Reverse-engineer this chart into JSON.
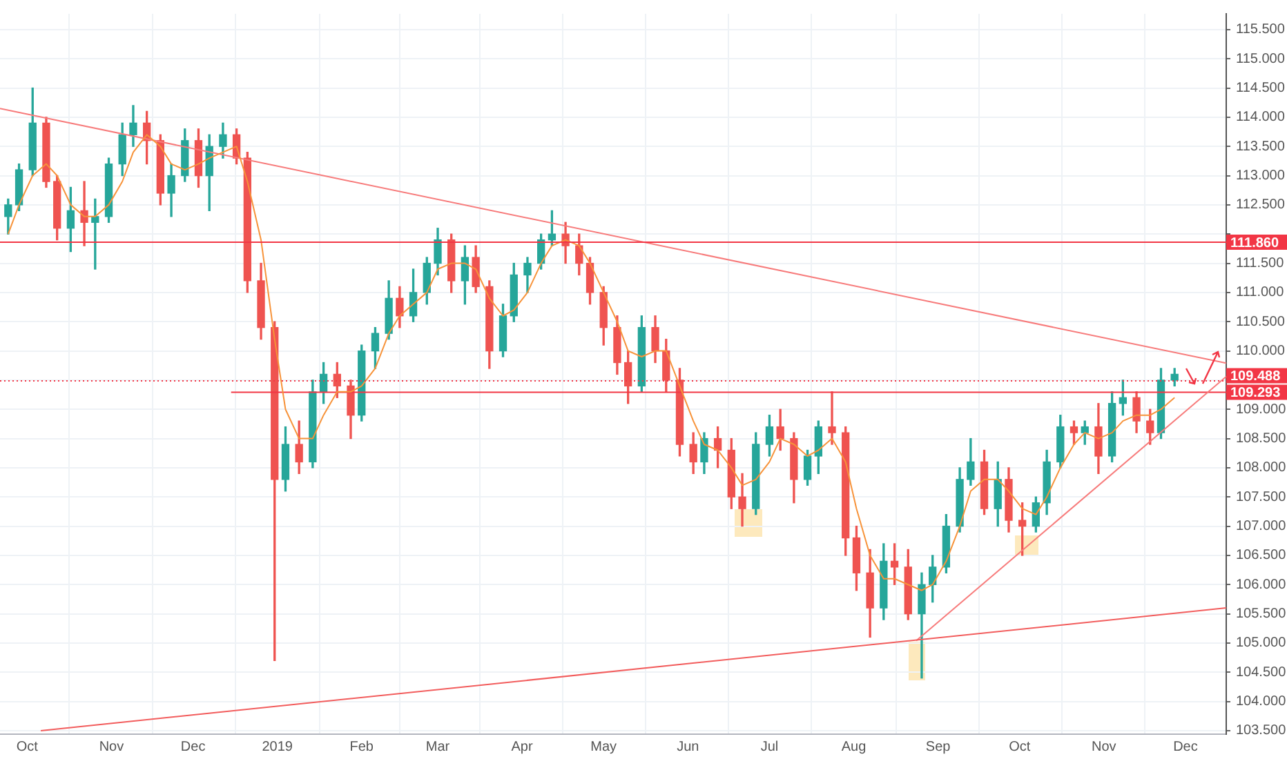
{
  "chart_data": {
    "type": "candlestick",
    "x": [
      "2018-09-24",
      "2018-09-28",
      "2018-10-03",
      "2018-10-08",
      "2018-10-12",
      "2018-10-17",
      "2018-10-22",
      "2018-10-26",
      "2018-10-31",
      "2018-11-05",
      "2018-11-09",
      "2018-11-14",
      "2018-11-19",
      "2018-11-23",
      "2018-11-28",
      "2018-12-03",
      "2018-12-07",
      "2018-12-12",
      "2018-12-17",
      "2018-12-21",
      "2018-12-26",
      "2018-12-31",
      "2019-01-04",
      "2019-01-09",
      "2019-01-14",
      "2019-01-18",
      "2019-01-23",
      "2019-01-28",
      "2019-02-01",
      "2019-02-06",
      "2019-02-11",
      "2019-02-15",
      "2019-02-20",
      "2019-02-25",
      "2019-03-01",
      "2019-03-06",
      "2019-03-11",
      "2019-03-15",
      "2019-03-20",
      "2019-03-25",
      "2019-03-29",
      "2019-04-03",
      "2019-04-08",
      "2019-04-12",
      "2019-04-17",
      "2019-04-22",
      "2019-04-26",
      "2019-05-01",
      "2019-05-06",
      "2019-05-10",
      "2019-05-15",
      "2019-05-20",
      "2019-05-24",
      "2019-05-29",
      "2019-06-03",
      "2019-06-07",
      "2019-06-12",
      "2019-06-17",
      "2019-06-21",
      "2019-06-26",
      "2019-07-01",
      "2019-07-05",
      "2019-07-10",
      "2019-07-15",
      "2019-07-19",
      "2019-07-24",
      "2019-07-29",
      "2019-08-02",
      "2019-08-07",
      "2019-08-12",
      "2019-08-16",
      "2019-08-21",
      "2019-08-26",
      "2019-08-30",
      "2019-09-04",
      "2019-09-09",
      "2019-09-13",
      "2019-09-18",
      "2019-09-23",
      "2019-09-27",
      "2019-10-02",
      "2019-10-07",
      "2019-10-11",
      "2019-10-16",
      "2019-10-21",
      "2019-10-25",
      "2019-10-30",
      "2019-11-04",
      "2019-11-08",
      "2019-11-13",
      "2019-11-18",
      "2019-11-22",
      "2019-11-27"
    ],
    "ohlc": [
      [
        112.3,
        112.6,
        112.0,
        112.5
      ],
      [
        112.5,
        113.2,
        112.4,
        113.1
      ],
      [
        113.1,
        114.5,
        113.0,
        113.9
      ],
      [
        113.9,
        114.0,
        112.8,
        112.9
      ],
      [
        112.9,
        113.0,
        111.9,
        112.1
      ],
      [
        112.1,
        112.8,
        111.7,
        112.4
      ],
      [
        112.4,
        112.9,
        111.8,
        112.2
      ],
      [
        112.2,
        112.6,
        111.4,
        112.3
      ],
      [
        112.3,
        113.3,
        112.2,
        113.2
      ],
      [
        113.2,
        113.9,
        113.0,
        113.7
      ],
      [
        113.7,
        114.2,
        113.5,
        113.9
      ],
      [
        113.9,
        114.1,
        113.2,
        113.6
      ],
      [
        113.6,
        113.7,
        112.5,
        112.7
      ],
      [
        112.7,
        113.2,
        112.3,
        113.0
      ],
      [
        113.0,
        113.8,
        112.9,
        113.6
      ],
      [
        113.6,
        113.8,
        112.8,
        113.0
      ],
      [
        113.0,
        113.7,
        112.4,
        113.5
      ],
      [
        113.5,
        113.9,
        113.3,
        113.7
      ],
      [
        113.7,
        113.8,
        113.2,
        113.3
      ],
      [
        113.3,
        113.4,
        111.0,
        111.2
      ],
      [
        111.2,
        111.5,
        110.2,
        110.4
      ],
      [
        110.4,
        110.5,
        104.7,
        107.8
      ],
      [
        107.8,
        108.7,
        107.6,
        108.4
      ],
      [
        108.4,
        108.8,
        107.9,
        108.1
      ],
      [
        108.1,
        109.5,
        108.0,
        109.3
      ],
      [
        109.3,
        109.8,
        109.1,
        109.6
      ],
      [
        109.6,
        109.8,
        109.2,
        109.4
      ],
      [
        109.4,
        109.5,
        108.5,
        108.9
      ],
      [
        108.9,
        110.1,
        108.8,
        110.0
      ],
      [
        110.0,
        110.4,
        109.7,
        110.3
      ],
      [
        110.3,
        111.2,
        110.2,
        110.9
      ],
      [
        110.9,
        111.1,
        110.4,
        110.6
      ],
      [
        110.6,
        111.4,
        110.5,
        111.0
      ],
      [
        111.0,
        111.6,
        110.8,
        111.5
      ],
      [
        111.5,
        112.1,
        111.3,
        111.9
      ],
      [
        111.9,
        112.0,
        111.0,
        111.2
      ],
      [
        111.2,
        111.8,
        110.8,
        111.6
      ],
      [
        111.6,
        111.8,
        111.0,
        111.1
      ],
      [
        111.1,
        111.2,
        109.7,
        110.0
      ],
      [
        110.0,
        110.8,
        109.9,
        110.6
      ],
      [
        110.6,
        111.5,
        110.5,
        111.3
      ],
      [
        111.3,
        111.6,
        111.0,
        111.5
      ],
      [
        111.5,
        112.0,
        111.4,
        111.9
      ],
      [
        111.9,
        112.4,
        111.8,
        112.0
      ],
      [
        112.0,
        112.2,
        111.5,
        111.8
      ],
      [
        111.8,
        112.0,
        111.3,
        111.5
      ],
      [
        111.5,
        111.6,
        110.8,
        111.0
      ],
      [
        111.0,
        111.1,
        110.1,
        110.4
      ],
      [
        110.4,
        110.6,
        109.6,
        109.8
      ],
      [
        109.8,
        110.0,
        109.1,
        109.4
      ],
      [
        109.4,
        110.6,
        109.3,
        110.4
      ],
      [
        110.4,
        110.6,
        109.8,
        110.0
      ],
      [
        110.0,
        110.2,
        109.3,
        109.5
      ],
      [
        109.5,
        109.7,
        108.2,
        108.4
      ],
      [
        108.4,
        108.6,
        107.9,
        108.1
      ],
      [
        108.1,
        108.6,
        107.9,
        108.5
      ],
      [
        108.5,
        108.7,
        108.0,
        108.3
      ],
      [
        108.3,
        108.5,
        107.3,
        107.5
      ],
      [
        107.5,
        107.9,
        107.0,
        107.3
      ],
      [
        107.3,
        108.6,
        107.2,
        108.4
      ],
      [
        108.4,
        108.9,
        108.2,
        108.7
      ],
      [
        108.7,
        109.0,
        108.3,
        108.5
      ],
      [
        108.5,
        108.6,
        107.4,
        107.8
      ],
      [
        107.8,
        108.3,
        107.7,
        108.2
      ],
      [
        108.2,
        108.8,
        107.9,
        108.7
      ],
      [
        108.7,
        109.3,
        108.4,
        108.6
      ],
      [
        108.6,
        108.7,
        106.5,
        106.8
      ],
      [
        106.8,
        107.0,
        105.9,
        106.2
      ],
      [
        106.2,
        106.6,
        105.1,
        105.6
      ],
      [
        105.6,
        106.7,
        105.4,
        106.4
      ],
      [
        106.4,
        106.7,
        106.0,
        106.3
      ],
      [
        106.3,
        106.6,
        105.4,
        105.5
      ],
      [
        105.5,
        106.2,
        104.4,
        106.0
      ],
      [
        106.0,
        106.5,
        105.7,
        106.3
      ],
      [
        106.3,
        107.2,
        106.2,
        107.0
      ],
      [
        107.0,
        108.0,
        106.9,
        107.8
      ],
      [
        107.8,
        108.5,
        107.7,
        108.1
      ],
      [
        108.1,
        108.3,
        107.2,
        107.3
      ],
      [
        107.3,
        108.1,
        107.0,
        107.8
      ],
      [
        107.8,
        108.0,
        106.9,
        107.1
      ],
      [
        107.1,
        107.4,
        106.5,
        107.0
      ],
      [
        107.0,
        107.5,
        106.9,
        107.4
      ],
      [
        107.4,
        108.3,
        107.2,
        108.1
      ],
      [
        108.1,
        108.9,
        108.0,
        108.7
      ],
      [
        108.7,
        108.8,
        108.4,
        108.6
      ],
      [
        108.6,
        108.8,
        108.4,
        108.7
      ],
      [
        108.7,
        109.1,
        107.9,
        108.2
      ],
      [
        108.2,
        109.3,
        108.1,
        109.1
      ],
      [
        109.1,
        109.5,
        108.9,
        109.2
      ],
      [
        109.2,
        109.3,
        108.6,
        108.8
      ],
      [
        108.8,
        109.0,
        108.4,
        108.6
      ],
      [
        108.6,
        109.7,
        108.5,
        109.5
      ],
      [
        109.5,
        109.7,
        109.4,
        109.6
      ]
    ],
    "colors": [
      "#26a69a",
      "#26a69a",
      "#26a69a",
      "#ef5350",
      "#ef5350",
      "#26a69a",
      "#ef5350",
      "#26a69a",
      "#26a69a",
      "#26a69a",
      "#26a69a",
      "#ef5350",
      "#ef5350",
      "#26a69a",
      "#26a69a",
      "#ef5350",
      "#26a69a",
      "#26a69a",
      "#ef5350",
      "#ef5350",
      "#ef5350",
      "#ef5350",
      "#26a69a",
      "#ef5350",
      "#26a69a",
      "#26a69a",
      "#ef5350",
      "#ef5350",
      "#26a69a",
      "#26a69a",
      "#26a69a",
      "#ef5350",
      "#26a69a",
      "#26a69a",
      "#26a69a",
      "#ef5350",
      "#26a69a",
      "#ef5350",
      "#ef5350",
      "#26a69a",
      "#26a69a",
      "#26a69a",
      "#26a69a",
      "#26a69a",
      "#ef5350",
      "#ef5350",
      "#ef5350",
      "#ef5350",
      "#ef5350",
      "#ef5350",
      "#26a69a",
      "#ef5350",
      "#ef5350",
      "#ef5350",
      "#ef5350",
      "#26a69a",
      "#ef5350",
      "#ef5350",
      "#ef5350",
      "#26a69a",
      "#26a69a",
      "#ef5350",
      "#ef5350",
      "#26a69a",
      "#26a69a",
      "#ef5350",
      "#ef5350",
      "#ef5350",
      "#ef5350",
      "#26a69a",
      "#ef5350",
      "#ef5350",
      "#26a69a",
      "#26a69a",
      "#26a69a",
      "#26a69a",
      "#26a69a",
      "#ef5350",
      "#26a69a",
      "#ef5350",
      "#ef5350",
      "#26a69a",
      "#26a69a",
      "#26a69a",
      "#ef5350",
      "#26a69a",
      "#ef5350",
      "#26a69a",
      "#26a69a",
      "#ef5350",
      "#ef5350",
      "#26a69a",
      "#26a69a"
    ],
    "series": [
      {
        "type": "line",
        "color": "#f7933a",
        "values": [
          112.0,
          112.5,
          113.0,
          113.2,
          113.0,
          112.5,
          112.3,
          112.3,
          112.5,
          112.9,
          113.4,
          113.7,
          113.5,
          113.2,
          113.1,
          113.2,
          113.3,
          113.4,
          113.5,
          112.9,
          111.9,
          110.2,
          109.0,
          108.5,
          108.5,
          108.9,
          109.3,
          109.3,
          109.4,
          109.7,
          110.3,
          110.6,
          110.8,
          111.0,
          111.4,
          111.5,
          111.5,
          111.4,
          110.9,
          110.6,
          110.7,
          111.0,
          111.5,
          111.8,
          111.9,
          111.8,
          111.5,
          111.0,
          110.5,
          110.0,
          109.9,
          110.0,
          110.0,
          109.4,
          108.8,
          108.4,
          108.3,
          108.0,
          107.7,
          107.8,
          108.1,
          108.5,
          108.4,
          108.2,
          108.3,
          108.5,
          108.1,
          107.3,
          106.5,
          106.1,
          106.1,
          106.0,
          105.9,
          106.0,
          106.4,
          107.0,
          107.6,
          107.8,
          107.8,
          107.6,
          107.3,
          107.2,
          107.5,
          108.0,
          108.4,
          108.6,
          108.5,
          108.6,
          108.8,
          108.9,
          108.9,
          109.0,
          109.2
        ]
      },
      {
        "type": "line",
        "color": "#f77b7b",
        "x": [
          "2018-09-21",
          "2019-12-16"
        ],
        "values": [
          114.15,
          109.79
        ]
      },
      {
        "type": "line",
        "color": "#f25c5c",
        "x": [
          "2018-10-06",
          "2019-12-16"
        ],
        "values": [
          103.5,
          105.6
        ]
      },
      {
        "type": "line",
        "color": "#f77b7b",
        "x": [
          "2019-08-24",
          "2019-12-16"
        ],
        "values": [
          105.04,
          109.56
        ]
      },
      {
        "type": "line",
        "color": "#f23645",
        "x": [
          "2018-12-15",
          "2019-12-16"
        ],
        "values": [
          109.293,
          109.293
        ]
      }
    ],
    "ref_lines": [
      {
        "axis": "y",
        "value": 111.86,
        "label": "111.860",
        "color": "#f23645",
        "line_style": "solid"
      },
      {
        "axis": "y",
        "value": 109.488,
        "label": "109.488",
        "color": "#f23645",
        "line_style": "dotted"
      }
    ],
    "annotations": [
      {
        "text": "109.293",
        "x": "2019-12-16",
        "y": 109.293
      }
    ],
    "xlim": [
      "2018-09-21",
      "2019-12-16"
    ],
    "xticks": [
      {
        "value": "2018-10-01",
        "label": "Oct"
      },
      {
        "value": "2018-11-01",
        "label": "Nov"
      },
      {
        "value": "2018-12-01",
        "label": "Dec"
      },
      {
        "value": "2019-01-01",
        "label": "2019"
      },
      {
        "value": "2019-02-01",
        "label": "Feb"
      },
      {
        "value": "2019-03-01",
        "label": "Mar"
      },
      {
        "value": "2019-04-01",
        "label": "Apr"
      },
      {
        "value": "2019-05-01",
        "label": "May"
      },
      {
        "value": "2019-06-01",
        "label": "Jun"
      },
      {
        "value": "2019-07-01",
        "label": "Jul"
      },
      {
        "value": "2019-08-01",
        "label": "Aug"
      },
      {
        "value": "2019-09-01",
        "label": "Sep"
      },
      {
        "value": "2019-10-01",
        "label": "Oct"
      },
      {
        "value": "2019-11-01",
        "label": "Nov"
      },
      {
        "value": "2019-12-01",
        "label": "Dec"
      }
    ],
    "ylim": [
      103.44,
      115.77
    ],
    "yticks": [
      {
        "value": 103.5,
        "label": "103.500"
      },
      {
        "value": 104,
        "label": "104.000"
      },
      {
        "value": 104.5,
        "label": "104.500"
      },
      {
        "value": 105,
        "label": "105.000"
      },
      {
        "value": 105.5,
        "label": "105.500"
      },
      {
        "value": 106,
        "label": "106.000"
      },
      {
        "value": 106.5,
        "label": "106.500"
      },
      {
        "value": 107,
        "label": "107.000"
      },
      {
        "value": 107.5,
        "label": "107.500"
      },
      {
        "value": 108,
        "label": "108.000"
      },
      {
        "value": 108.5,
        "label": "108.500"
      },
      {
        "value": 109,
        "label": "109.000"
      },
      {
        "value": 109.5,
        "label": null
      },
      {
        "value": 110,
        "label": "110.000"
      },
      {
        "value": 110.5,
        "label": "110.500"
      },
      {
        "value": 111,
        "label": "111.000"
      },
      {
        "value": 111.5,
        "label": "111.500"
      },
      {
        "value": 112,
        "label": null
      },
      {
        "value": 112.5,
        "label": "112.500"
      },
      {
        "value": 113,
        "label": "113.000"
      },
      {
        "value": 113.5,
        "label": "113.500"
      },
      {
        "value": 114,
        "label": "114.000"
      },
      {
        "value": 114.5,
        "label": "114.500"
      },
      {
        "value": 115,
        "label": "115.000"
      },
      {
        "value": 115.5,
        "label": "115.500"
      }
    ],
    "grid": true,
    "legend": false,
    "marker": "none"
  }
}
